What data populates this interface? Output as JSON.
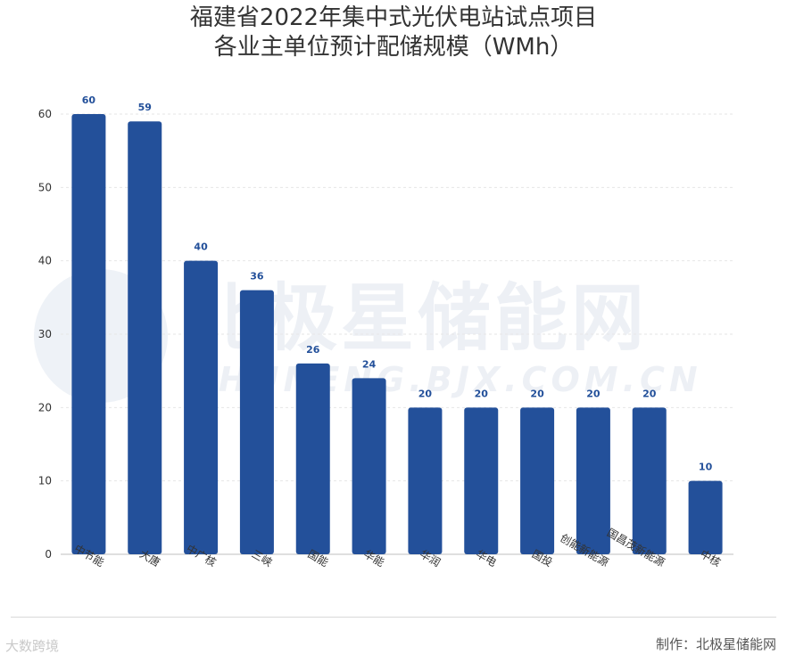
{
  "title": {
    "line1": "福建省2022年集中式光伏电站试点项目",
    "line2": "各业主单位预计配储规模（WMh）"
  },
  "chart_data": {
    "type": "bar",
    "categories": [
      "中节能",
      "大唐",
      "中广核",
      "三峡",
      "国能",
      "华能",
      "华润",
      "华电",
      "国投",
      "创能新能源",
      "国昌茂新能源",
      "中核"
    ],
    "values": [
      60,
      59,
      40,
      36,
      26,
      24,
      20,
      20,
      20,
      20,
      20,
      10
    ],
    "ylim": [
      0,
      60
    ],
    "yticks": [
      0,
      10,
      20,
      30,
      40,
      50,
      60
    ],
    "grid": true,
    "bar_color": "#23509a",
    "label_color": "#23509a"
  },
  "watermark": {
    "text": "北极星储能网",
    "sub": "CHUNENG.BJX.COM.CN"
  },
  "footer": {
    "credit": "制作：北极星储能网",
    "logo": "大数跨境"
  }
}
